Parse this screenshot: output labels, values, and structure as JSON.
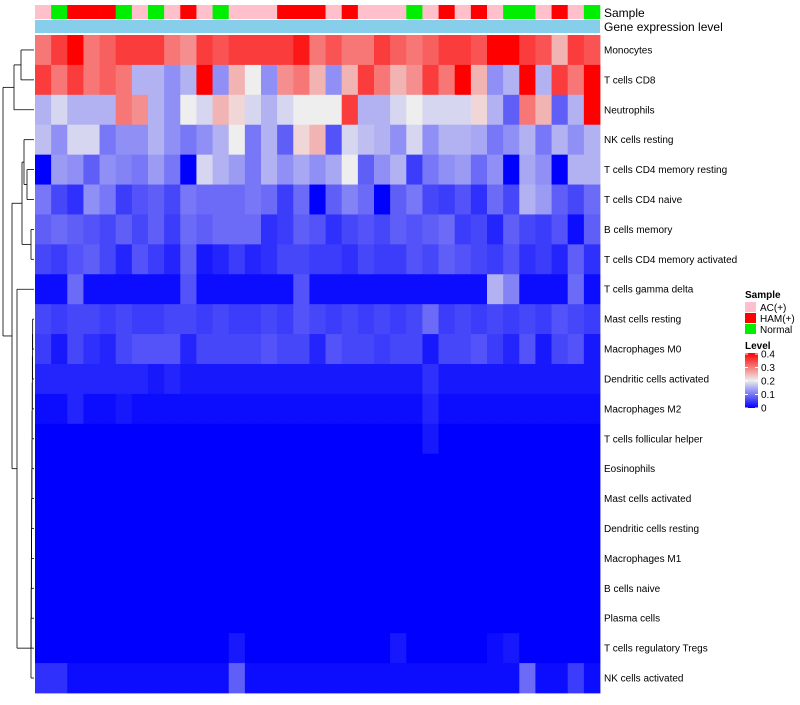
{
  "chart_data": {
    "type": "heatmap",
    "title": "",
    "annotation_titles": [
      "Sample",
      "Gene expression level"
    ],
    "rows": [
      "Monocytes",
      "T cells CD8",
      "Neutrophils",
      "NK cells resting",
      "T cells CD4 memory resting",
      "T cells CD4 naive",
      "B cells memory",
      "T cells CD4 memory activated",
      "T cells gamma delta",
      "Mast cells resting",
      "Macrophages M0",
      "Dendritic cells activated",
      "Macrophages M2",
      "T cells follicular helper",
      "Eosinophils",
      "Mast cells activated",
      "Dendritic cells resting",
      "Macrophages M1",
      "B cells naive",
      "Plasma cells",
      "T cells regulatory  Tregs",
      "NK cells activated"
    ],
    "sample_groups": [
      "AC",
      "N",
      "H",
      "H",
      "H",
      "N",
      "AC",
      "N",
      "AC",
      "H",
      "AC",
      "N",
      "AC",
      "AC",
      "AC",
      "H",
      "H",
      "H",
      "AC",
      "H",
      "AC",
      "AC",
      "AC",
      "N",
      "AC",
      "H",
      "AC",
      "H",
      "AC",
      "N",
      "N",
      "AC",
      "H",
      "AC",
      "N"
    ],
    "values": [
      [
        0.3,
        0.35,
        0.4,
        0.3,
        0.32,
        0.35,
        0.35,
        0.35,
        0.3,
        0.28,
        0.35,
        0.33,
        0.35,
        0.35,
        0.35,
        0.35,
        0.38,
        0.3,
        0.33,
        0.3,
        0.3,
        0.35,
        0.32,
        0.3,
        0.32,
        0.35,
        0.35,
        0.33,
        0.4,
        0.4,
        0.35,
        0.33,
        0.25,
        0.35,
        0.33
      ],
      [
        0.35,
        0.3,
        0.35,
        0.3,
        0.32,
        0.3,
        0.15,
        0.15,
        0.12,
        0.15,
        0.4,
        0.12,
        0.25,
        0.2,
        0.12,
        0.28,
        0.3,
        0.25,
        0.12,
        0.25,
        0.35,
        0.3,
        0.25,
        0.28,
        0.35,
        0.3,
        0.4,
        0.25,
        0.12,
        0.15,
        0.4,
        0.15,
        0.35,
        0.3,
        0.4
      ],
      [
        0.15,
        0.18,
        0.15,
        0.15,
        0.15,
        0.3,
        0.28,
        0.15,
        0.12,
        0.2,
        0.18,
        0.25,
        0.22,
        0.18,
        0.15,
        0.18,
        0.2,
        0.2,
        0.2,
        0.35,
        0.15,
        0.15,
        0.18,
        0.2,
        0.18,
        0.18,
        0.18,
        0.22,
        0.15,
        0.08,
        0.3,
        0.25,
        0.08,
        0.15,
        0.4
      ],
      [
        0.16,
        0.12,
        0.18,
        0.18,
        0.1,
        0.12,
        0.12,
        0.15,
        0.12,
        0.1,
        0.12,
        0.15,
        0.2,
        0.1,
        0.15,
        0.08,
        0.22,
        0.25,
        0.07,
        0.18,
        0.16,
        0.15,
        0.12,
        0.18,
        0.12,
        0.15,
        0.15,
        0.14,
        0.1,
        0.12,
        0.15,
        0.1,
        0.15,
        0.12,
        0.15
      ],
      [
        0.0,
        0.13,
        0.12,
        0.08,
        0.12,
        0.11,
        0.1,
        0.13,
        0.1,
        0.0,
        0.18,
        0.15,
        0.13,
        0.1,
        0.15,
        0.12,
        0.14,
        0.12,
        0.14,
        0.2,
        0.08,
        0.12,
        0.15,
        0.05,
        0.1,
        0.12,
        0.13,
        0.09,
        0.12,
        0.0,
        0.14,
        0.12,
        0.0,
        0.15,
        0.15
      ],
      [
        0.1,
        0.06,
        0.04,
        0.12,
        0.1,
        0.05,
        0.07,
        0.08,
        0.06,
        0.1,
        0.09,
        0.09,
        0.09,
        0.1,
        0.09,
        0.05,
        0.09,
        0.0,
        0.08,
        0.11,
        0.09,
        0.0,
        0.08,
        0.1,
        0.06,
        0.05,
        0.07,
        0.04,
        0.09,
        0.06,
        0.15,
        0.13,
        0.08,
        0.06,
        0.09
      ],
      [
        0.08,
        0.09,
        0.08,
        0.07,
        0.06,
        0.08,
        0.06,
        0.08,
        0.05,
        0.09,
        0.08,
        0.09,
        0.09,
        0.09,
        0.04,
        0.05,
        0.08,
        0.07,
        0.04,
        0.06,
        0.07,
        0.06,
        0.08,
        0.07,
        0.08,
        0.09,
        0.05,
        0.06,
        0.03,
        0.08,
        0.06,
        0.05,
        0.07,
        0.01,
        0.08
      ],
      [
        0.06,
        0.05,
        0.07,
        0.08,
        0.06,
        0.03,
        0.07,
        0.05,
        0.03,
        0.08,
        0.02,
        0.03,
        0.05,
        0.03,
        0.04,
        0.06,
        0.06,
        0.05,
        0.05,
        0.04,
        0.06,
        0.05,
        0.05,
        0.07,
        0.06,
        0.08,
        0.07,
        0.06,
        0.05,
        0.07,
        0.04,
        0.05,
        0.03,
        0.08,
        0.04
      ],
      [
        0.01,
        0.01,
        0.09,
        0.01,
        0.01,
        0.01,
        0.01,
        0.01,
        0.01,
        0.07,
        0.01,
        0.01,
        0.01,
        0.01,
        0.01,
        0.01,
        0.07,
        0.01,
        0.01,
        0.01,
        0.01,
        0.01,
        0.01,
        0.01,
        0.01,
        0.01,
        0.01,
        0.01,
        0.15,
        0.11,
        0.01,
        0.01,
        0.01,
        0.09,
        0.01
      ],
      [
        0.06,
        0.05,
        0.06,
        0.06,
        0.05,
        0.06,
        0.05,
        0.05,
        0.06,
        0.06,
        0.05,
        0.06,
        0.05,
        0.05,
        0.06,
        0.05,
        0.07,
        0.06,
        0.05,
        0.06,
        0.05,
        0.06,
        0.05,
        0.06,
        0.09,
        0.05,
        0.06,
        0.05,
        0.06,
        0.05,
        0.06,
        0.05,
        0.07,
        0.06,
        0.05
      ],
      [
        0.05,
        0.02,
        0.06,
        0.04,
        0.03,
        0.06,
        0.07,
        0.07,
        0.07,
        0.03,
        0.06,
        0.06,
        0.06,
        0.06,
        0.07,
        0.06,
        0.06,
        0.03,
        0.07,
        0.06,
        0.06,
        0.05,
        0.06,
        0.06,
        0.02,
        0.06,
        0.06,
        0.07,
        0.05,
        0.03,
        0.07,
        0.02,
        0.06,
        0.07,
        0.02
      ],
      [
        0.03,
        0.03,
        0.03,
        0.03,
        0.03,
        0.03,
        0.03,
        0.02,
        0.03,
        0.02,
        0.02,
        0.02,
        0.02,
        0.02,
        0.02,
        0.02,
        0.02,
        0.02,
        0.02,
        0.02,
        0.02,
        0.02,
        0.02,
        0.02,
        0.04,
        0.02,
        0.02,
        0.02,
        0.02,
        0.02,
        0.02,
        0.02,
        0.02,
        0.02,
        0.02
      ],
      [
        0.01,
        0.01,
        0.03,
        0.01,
        0.01,
        0.02,
        0.01,
        0.01,
        0.01,
        0.01,
        0.01,
        0.01,
        0.01,
        0.01,
        0.01,
        0.01,
        0.01,
        0.01,
        0.01,
        0.01,
        0.01,
        0.01,
        0.01,
        0.01,
        0.03,
        0.01,
        0.01,
        0.01,
        0.01,
        0.01,
        0.01,
        0.01,
        0.01,
        0.01,
        0.01
      ],
      [
        0.0,
        0.0,
        0.0,
        0.0,
        0.0,
        0.0,
        0.0,
        0.0,
        0.0,
        0.0,
        0.0,
        0.0,
        0.0,
        0.0,
        0.0,
        0.0,
        0.0,
        0.0,
        0.0,
        0.0,
        0.0,
        0.0,
        0.0,
        0.0,
        0.02,
        0.0,
        0.0,
        0.0,
        0.0,
        0.0,
        0.0,
        0.0,
        0.0,
        0.0,
        0.0
      ],
      [
        0.0,
        0.0,
        0.0,
        0.0,
        0.0,
        0.0,
        0.0,
        0.0,
        0.0,
        0.0,
        0.0,
        0.0,
        0.0,
        0.0,
        0.0,
        0.0,
        0.0,
        0.0,
        0.0,
        0.0,
        0.0,
        0.0,
        0.0,
        0.0,
        0.0,
        0.0,
        0.0,
        0.0,
        0.0,
        0.0,
        0.0,
        0.0,
        0.0,
        0.0,
        0.0
      ],
      [
        0.0,
        0.0,
        0.0,
        0.0,
        0.0,
        0.0,
        0.0,
        0.0,
        0.0,
        0.0,
        0.0,
        0.0,
        0.0,
        0.0,
        0.0,
        0.0,
        0.0,
        0.0,
        0.0,
        0.0,
        0.0,
        0.0,
        0.0,
        0.0,
        0.0,
        0.0,
        0.0,
        0.0,
        0.0,
        0.0,
        0.0,
        0.0,
        0.0,
        0.0,
        0.0
      ],
      [
        0.0,
        0.0,
        0.0,
        0.0,
        0.0,
        0.0,
        0.0,
        0.0,
        0.0,
        0.0,
        0.0,
        0.0,
        0.0,
        0.0,
        0.0,
        0.0,
        0.0,
        0.0,
        0.0,
        0.0,
        0.0,
        0.0,
        0.0,
        0.0,
        0.0,
        0.0,
        0.0,
        0.0,
        0.0,
        0.0,
        0.0,
        0.0,
        0.0,
        0.0,
        0.0
      ],
      [
        0.0,
        0.0,
        0.0,
        0.0,
        0.0,
        0.0,
        0.0,
        0.0,
        0.0,
        0.0,
        0.0,
        0.0,
        0.0,
        0.0,
        0.0,
        0.0,
        0.0,
        0.0,
        0.0,
        0.0,
        0.0,
        0.0,
        0.0,
        0.0,
        0.0,
        0.0,
        0.0,
        0.0,
        0.0,
        0.0,
        0.0,
        0.0,
        0.0,
        0.0,
        0.0
      ],
      [
        0.0,
        0.0,
        0.0,
        0.0,
        0.0,
        0.0,
        0.0,
        0.0,
        0.0,
        0.0,
        0.0,
        0.0,
        0.0,
        0.0,
        0.0,
        0.0,
        0.0,
        0.0,
        0.0,
        0.0,
        0.0,
        0.0,
        0.0,
        0.0,
        0.0,
        0.0,
        0.0,
        0.0,
        0.0,
        0.0,
        0.0,
        0.0,
        0.0,
        0.0,
        0.0
      ],
      [
        0.0,
        0.0,
        0.0,
        0.0,
        0.0,
        0.0,
        0.0,
        0.0,
        0.0,
        0.0,
        0.0,
        0.0,
        0.0,
        0.0,
        0.0,
        0.0,
        0.0,
        0.0,
        0.0,
        0.0,
        0.0,
        0.0,
        0.0,
        0.0,
        0.0,
        0.0,
        0.0,
        0.0,
        0.0,
        0.0,
        0.0,
        0.0,
        0.0,
        0.0,
        0.0
      ],
      [
        0.0,
        0.0,
        0.0,
        0.0,
        0.0,
        0.0,
        0.0,
        0.0,
        0.0,
        0.0,
        0.0,
        0.0,
        0.02,
        0.0,
        0.0,
        0.0,
        0.0,
        0.0,
        0.0,
        0.0,
        0.0,
        0.0,
        0.02,
        0.0,
        0.0,
        0.0,
        0.0,
        0.0,
        0.01,
        0.02,
        0.0,
        0.0,
        0.0,
        0.0,
        0.0
      ],
      [
        0.04,
        0.04,
        0.01,
        0.01,
        0.01,
        0.01,
        0.01,
        0.01,
        0.01,
        0.01,
        0.01,
        0.01,
        0.08,
        0.01,
        0.01,
        0.01,
        0.01,
        0.01,
        0.01,
        0.01,
        0.01,
        0.01,
        0.01,
        0.01,
        0.01,
        0.01,
        0.01,
        0.01,
        0.01,
        0.01,
        0.09,
        0.01,
        0.01,
        0.05,
        0.01
      ]
    ],
    "legend": {
      "sample_title": "Sample",
      "sample_items": [
        {
          "key": "AC",
          "label": "AC(+)",
          "color": "#ffc0cb"
        },
        {
          "key": "H",
          "label": "HAM(+)",
          "color": "#ff0000"
        },
        {
          "key": "N",
          "label": "Normal",
          "color": "#00ee00"
        }
      ],
      "level_title": "Level",
      "level_ticks": [
        "0.4",
        "0.3",
        "0.2",
        "0.1",
        "0"
      ],
      "level_range": [
        0,
        0.4
      ]
    },
    "colors": {
      "low": "#0000ff",
      "mid": "#eeeeee",
      "high": "#ff0000",
      "expression_bar": "#87ceeb"
    }
  }
}
